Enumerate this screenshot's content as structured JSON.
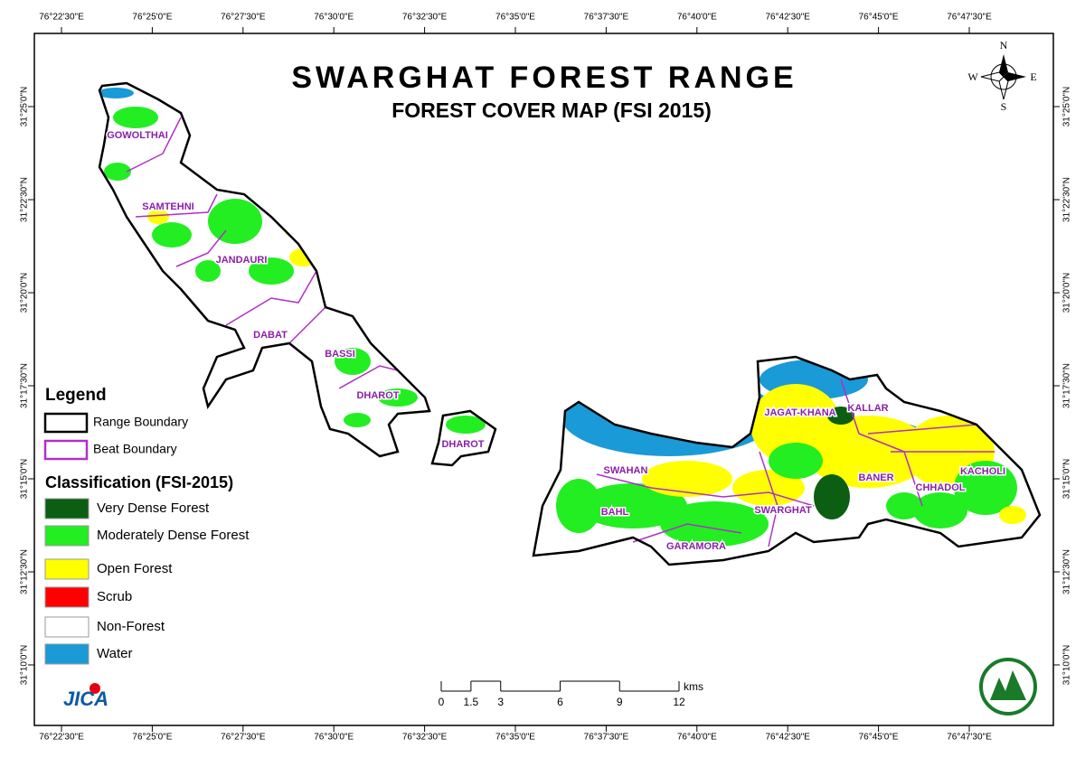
{
  "map": {
    "title": "SWARGHAT FOREST RANGE",
    "subtitle": "FOREST COVER MAP (FSI 2015)",
    "compass": {
      "n": "N",
      "s": "S",
      "e": "E",
      "w": "W"
    },
    "longitude_labels": [
      "76°22'30\"E",
      "76°25'0\"E",
      "76°27'30\"E",
      "76°30'0\"E",
      "76°32'30\"E",
      "76°35'0\"E",
      "76°37'30\"E",
      "76°40'0\"E",
      "76°42'30\"E",
      "76°45'0\"E",
      "76°47'30\"E"
    ],
    "latitude_labels": [
      "31°25'0\"N",
      "31°22'30\"N",
      "31°20'0\"N",
      "31°17'30\"N",
      "31°15'0\"N",
      "31°12'30\"N",
      "31°10'0\"N"
    ],
    "beats": [
      "GOWOLTHAI",
      "SAMTEHNI",
      "JANDAURI",
      "DABAT",
      "BASSI",
      "DHAROT",
      "DHAROT",
      "SWAHAN",
      "BAHL",
      "GARAMORA",
      "SWARGHAT",
      "JAGAT-KHANA",
      "KALLAR",
      "BANER",
      "CHHADOL",
      "KACHOLI"
    ],
    "scale": {
      "ticks": [
        0,
        1.5,
        3,
        6,
        9,
        12
      ],
      "unit": "kms"
    }
  },
  "legend": {
    "title": "Legend",
    "boundaries": [
      {
        "label": "Range Boundary",
        "color": "#000000"
      },
      {
        "label": "Beat Boundary",
        "color": "#b030c8"
      }
    ],
    "classification_title": "Classification (FSI-2015)",
    "classes": [
      {
        "label": "Very Dense Forest",
        "color": "#0b5e12"
      },
      {
        "label": "Moderately Dense Forest",
        "color": "#22ee22"
      },
      {
        "label": "Open Forest",
        "color": "#ffff00"
      },
      {
        "label": "Scrub",
        "color": "#ff0000"
      },
      {
        "label": "Non-Forest",
        "color": "#ffffff"
      },
      {
        "label": "Water",
        "color": "#1a9ad6"
      }
    ]
  },
  "logo": "JICA"
}
